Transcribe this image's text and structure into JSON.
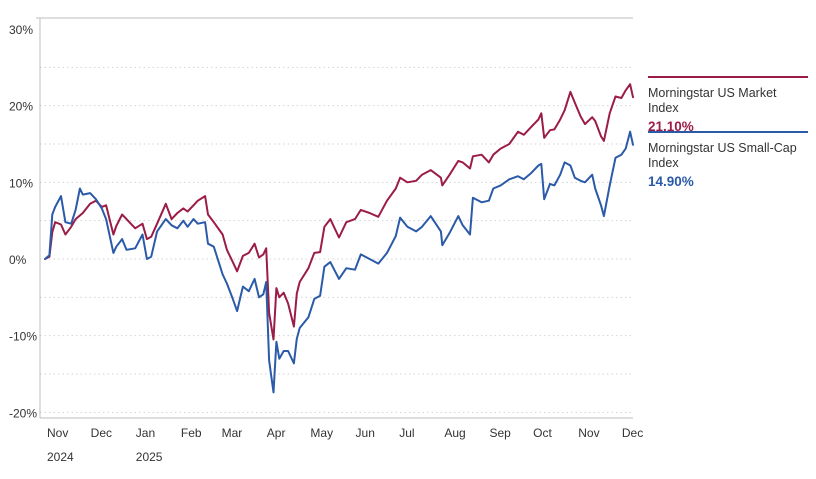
{
  "chart_data": {
    "type": "line",
    "ylim": [
      -20,
      30
    ],
    "y_ticks": [
      {
        "value": 30,
        "label": "30%"
      },
      {
        "value": 20,
        "label": "20%"
      },
      {
        "value": 10,
        "label": "10%"
      },
      {
        "value": 0,
        "label": "0%"
      },
      {
        "value": -10,
        "label": "-10%"
      },
      {
        "value": -20,
        "label": "-20%"
      }
    ],
    "grid": "dotted horizontal",
    "x_range": [
      "2024-11-01",
      "2025-12-10"
    ],
    "x_ticks": [
      {
        "label": "Nov",
        "date": "2024-11-01"
      },
      {
        "label": "Dec",
        "date": "2024-12-01"
      },
      {
        "label": "Jan",
        "date": "2025-01-01"
      },
      {
        "label": "Feb",
        "date": "2025-02-01"
      },
      {
        "label": "Mar",
        "date": "2025-03-01"
      },
      {
        "label": "Apr",
        "date": "2025-04-01"
      },
      {
        "label": "May",
        "date": "2025-05-01"
      },
      {
        "label": "Jun",
        "date": "2025-06-01"
      },
      {
        "label": "Jul",
        "date": "2025-07-01"
      },
      {
        "label": "Aug",
        "date": "2025-08-01"
      },
      {
        "label": "Sep",
        "date": "2025-09-01"
      },
      {
        "label": "Oct",
        "date": "2025-10-01"
      },
      {
        "label": "Nov",
        "date": "2025-11-01"
      },
      {
        "label": "Dec",
        "date": "2025-12-01"
      }
    ],
    "year_labels": [
      {
        "label": "2024",
        "date": "2024-11-01"
      },
      {
        "label": "2025",
        "date": "2025-01-01"
      }
    ],
    "legend_position": "right",
    "series": [
      {
        "name": "Morningstar US Market Index",
        "final_label": "21.10%",
        "color": "#9b1c45",
        "points": [
          [
            "2024-11-01",
            0
          ],
          [
            "2024-11-04",
            0.3
          ],
          [
            "2024-11-06",
            3.5
          ],
          [
            "2024-11-08",
            4.8
          ],
          [
            "2024-11-12",
            4.5
          ],
          [
            "2024-11-15",
            3.2
          ],
          [
            "2024-11-19",
            4.2
          ],
          [
            "2024-11-22",
            5.2
          ],
          [
            "2024-11-27",
            6.0
          ],
          [
            "2024-12-02",
            7.2
          ],
          [
            "2024-12-06",
            7.6
          ],
          [
            "2024-12-10",
            6.8
          ],
          [
            "2024-12-13",
            7.0
          ],
          [
            "2024-12-18",
            3.2
          ],
          [
            "2024-12-20",
            4.3
          ],
          [
            "2024-12-24",
            5.8
          ],
          [
            "2024-12-27",
            5.2
          ],
          [
            "2025-01-02",
            4.0
          ],
          [
            "2025-01-07",
            4.6
          ],
          [
            "2025-01-10",
            2.6
          ],
          [
            "2025-01-13",
            2.9
          ],
          [
            "2025-01-17",
            4.6
          ],
          [
            "2025-01-23",
            7.2
          ],
          [
            "2025-01-27",
            5.2
          ],
          [
            "2025-01-31",
            6.0
          ],
          [
            "2025-02-04",
            6.6
          ],
          [
            "2025-02-07",
            6.2
          ],
          [
            "2025-02-11",
            7.0
          ],
          [
            "2025-02-14",
            7.6
          ],
          [
            "2025-02-19",
            8.2
          ],
          [
            "2025-02-21",
            5.8
          ],
          [
            "2025-02-25",
            4.8
          ],
          [
            "2025-03-03",
            3.2
          ],
          [
            "2025-03-06",
            1.2
          ],
          [
            "2025-03-10",
            -0.4
          ],
          [
            "2025-03-13",
            -1.6
          ],
          [
            "2025-03-17",
            0.4
          ],
          [
            "2025-03-21",
            0.8
          ],
          [
            "2025-03-25",
            2.0
          ],
          [
            "2025-03-28",
            0.2
          ],
          [
            "2025-03-31",
            0.6
          ],
          [
            "2025-04-02",
            1.4
          ],
          [
            "2025-04-04",
            -7.0
          ],
          [
            "2025-04-07",
            -10.5
          ],
          [
            "2025-04-09",
            -3.8
          ],
          [
            "2025-04-11",
            -5.0
          ],
          [
            "2025-04-14",
            -4.4
          ],
          [
            "2025-04-17",
            -5.8
          ],
          [
            "2025-04-21",
            -8.8
          ],
          [
            "2025-04-23",
            -4.5
          ],
          [
            "2025-04-25",
            -3.0
          ],
          [
            "2025-05-01",
            -1.2
          ],
          [
            "2025-05-05",
            0.8
          ],
          [
            "2025-05-09",
            0.9
          ],
          [
            "2025-05-12",
            4.2
          ],
          [
            "2025-05-16",
            5.2
          ],
          [
            "2025-05-22",
            2.8
          ],
          [
            "2025-05-27",
            4.8
          ],
          [
            "2025-06-02",
            5.2
          ],
          [
            "2025-06-06",
            6.4
          ],
          [
            "2025-06-12",
            6.0
          ],
          [
            "2025-06-18",
            5.5
          ],
          [
            "2025-06-24",
            7.6
          ],
          [
            "2025-06-30",
            9.2
          ],
          [
            "2025-07-03",
            10.6
          ],
          [
            "2025-07-08",
            10.0
          ],
          [
            "2025-07-14",
            10.2
          ],
          [
            "2025-07-18",
            11.0
          ],
          [
            "2025-07-24",
            11.6
          ],
          [
            "2025-07-31",
            10.6
          ],
          [
            "2025-08-01",
            9.6
          ],
          [
            "2025-08-06",
            11.0
          ],
          [
            "2025-08-12",
            12.8
          ],
          [
            "2025-08-15",
            12.6
          ],
          [
            "2025-08-20",
            11.8
          ],
          [
            "2025-08-22",
            13.4
          ],
          [
            "2025-08-28",
            13.6
          ],
          [
            "2025-09-02",
            12.6
          ],
          [
            "2025-09-05",
            13.6
          ],
          [
            "2025-09-10",
            14.4
          ],
          [
            "2025-09-16",
            15.0
          ],
          [
            "2025-09-22",
            16.6
          ],
          [
            "2025-09-26",
            16.2
          ],
          [
            "2025-10-01",
            17.2
          ],
          [
            "2025-10-06",
            18.2
          ],
          [
            "2025-10-08",
            19.0
          ],
          [
            "2025-10-10",
            15.8
          ],
          [
            "2025-10-14",
            16.8
          ],
          [
            "2025-10-17",
            16.9
          ],
          [
            "2025-10-21",
            18.2
          ],
          [
            "2025-10-24",
            19.4
          ],
          [
            "2025-10-28",
            21.8
          ],
          [
            "2025-10-31",
            20.4
          ],
          [
            "2025-11-04",
            18.6
          ],
          [
            "2025-11-07",
            17.6
          ],
          [
            "2025-11-12",
            18.5
          ],
          [
            "2025-11-14",
            18.0
          ],
          [
            "2025-11-18",
            16.0
          ],
          [
            "2025-11-20",
            15.4
          ],
          [
            "2025-11-24",
            19.0
          ],
          [
            "2025-11-28",
            21.2
          ],
          [
            "2025-12-02",
            21.0
          ],
          [
            "2025-12-05",
            22.0
          ],
          [
            "2025-12-08",
            22.8
          ],
          [
            "2025-12-10",
            21.1
          ]
        ]
      },
      {
        "name": "Morningstar US Small-Cap Index",
        "final_label": "14.90%",
        "color": "#2a5aa8",
        "points": [
          [
            "2024-11-01",
            0
          ],
          [
            "2024-11-04",
            0.5
          ],
          [
            "2024-11-06",
            5.8
          ],
          [
            "2024-11-08",
            6.8
          ],
          [
            "2024-11-12",
            8.2
          ],
          [
            "2024-11-15",
            4.8
          ],
          [
            "2024-11-19",
            4.6
          ],
          [
            "2024-11-22",
            6.4
          ],
          [
            "2024-11-25",
            9.2
          ],
          [
            "2024-11-27",
            8.4
          ],
          [
            "2024-12-02",
            8.6
          ],
          [
            "2024-12-06",
            7.8
          ],
          [
            "2024-12-10",
            6.6
          ],
          [
            "2024-12-13",
            5.2
          ],
          [
            "2024-12-18",
            0.8
          ],
          [
            "2024-12-20",
            1.6
          ],
          [
            "2024-12-24",
            2.6
          ],
          [
            "2024-12-27",
            1.2
          ],
          [
            "2025-01-02",
            1.4
          ],
          [
            "2025-01-07",
            3.2
          ],
          [
            "2025-01-10",
            0.0
          ],
          [
            "2025-01-13",
            0.3
          ],
          [
            "2025-01-17",
            3.6
          ],
          [
            "2025-01-23",
            5.2
          ],
          [
            "2025-01-27",
            4.4
          ],
          [
            "2025-01-31",
            4.0
          ],
          [
            "2025-02-04",
            5.0
          ],
          [
            "2025-02-07",
            4.2
          ],
          [
            "2025-02-11",
            5.2
          ],
          [
            "2025-02-14",
            4.6
          ],
          [
            "2025-02-19",
            4.8
          ],
          [
            "2025-02-21",
            2.0
          ],
          [
            "2025-02-25",
            1.6
          ],
          [
            "2025-03-03",
            -2.0
          ],
          [
            "2025-03-06",
            -3.2
          ],
          [
            "2025-03-10",
            -5.2
          ],
          [
            "2025-03-13",
            -6.8
          ],
          [
            "2025-03-17",
            -3.6
          ],
          [
            "2025-03-21",
            -4.2
          ],
          [
            "2025-03-25",
            -2.6
          ],
          [
            "2025-03-28",
            -5.0
          ],
          [
            "2025-03-31",
            -4.6
          ],
          [
            "2025-04-02",
            -3.0
          ],
          [
            "2025-04-04",
            -13.2
          ],
          [
            "2025-04-07",
            -17.4
          ],
          [
            "2025-04-09",
            -10.8
          ],
          [
            "2025-04-11",
            -13.0
          ],
          [
            "2025-04-14",
            -12.0
          ],
          [
            "2025-04-17",
            -12.0
          ],
          [
            "2025-04-21",
            -13.6
          ],
          [
            "2025-04-23",
            -10.4
          ],
          [
            "2025-04-25",
            -9.0
          ],
          [
            "2025-05-01",
            -7.6
          ],
          [
            "2025-05-05",
            -5.2
          ],
          [
            "2025-05-09",
            -4.8
          ],
          [
            "2025-05-12",
            -1.0
          ],
          [
            "2025-05-16",
            -0.4
          ],
          [
            "2025-05-22",
            -2.6
          ],
          [
            "2025-05-27",
            -1.2
          ],
          [
            "2025-06-02",
            -1.4
          ],
          [
            "2025-06-06",
            0.6
          ],
          [
            "2025-06-12",
            0.0
          ],
          [
            "2025-06-18",
            -0.6
          ],
          [
            "2025-06-24",
            0.8
          ],
          [
            "2025-06-30",
            3.0
          ],
          [
            "2025-07-03",
            5.4
          ],
          [
            "2025-07-08",
            4.2
          ],
          [
            "2025-07-14",
            3.6
          ],
          [
            "2025-07-18",
            4.2
          ],
          [
            "2025-07-24",
            5.6
          ],
          [
            "2025-07-31",
            3.6
          ],
          [
            "2025-08-01",
            1.8
          ],
          [
            "2025-08-06",
            3.4
          ],
          [
            "2025-08-12",
            5.6
          ],
          [
            "2025-08-15",
            4.4
          ],
          [
            "2025-08-20",
            3.2
          ],
          [
            "2025-08-22",
            8.0
          ],
          [
            "2025-08-28",
            7.4
          ],
          [
            "2025-09-02",
            7.6
          ],
          [
            "2025-09-05",
            9.2
          ],
          [
            "2025-09-10",
            9.6
          ],
          [
            "2025-09-16",
            10.4
          ],
          [
            "2025-09-22",
            10.8
          ],
          [
            "2025-09-26",
            10.4
          ],
          [
            "2025-10-01",
            11.2
          ],
          [
            "2025-10-06",
            12.2
          ],
          [
            "2025-10-08",
            12.4
          ],
          [
            "2025-10-10",
            7.8
          ],
          [
            "2025-10-14",
            9.8
          ],
          [
            "2025-10-17",
            9.6
          ],
          [
            "2025-10-21",
            11.0
          ],
          [
            "2025-10-24",
            12.6
          ],
          [
            "2025-10-28",
            12.2
          ],
          [
            "2025-10-31",
            10.6
          ],
          [
            "2025-11-04",
            10.2
          ],
          [
            "2025-11-07",
            10.0
          ],
          [
            "2025-11-12",
            11.0
          ],
          [
            "2025-11-14",
            9.2
          ],
          [
            "2025-11-18",
            7.0
          ],
          [
            "2025-11-20",
            5.6
          ],
          [
            "2025-11-24",
            9.6
          ],
          [
            "2025-11-28",
            13.2
          ],
          [
            "2025-12-02",
            13.6
          ],
          [
            "2025-12-05",
            14.4
          ],
          [
            "2025-12-08",
            16.6
          ],
          [
            "2025-12-10",
            14.9
          ]
        ]
      }
    ]
  }
}
